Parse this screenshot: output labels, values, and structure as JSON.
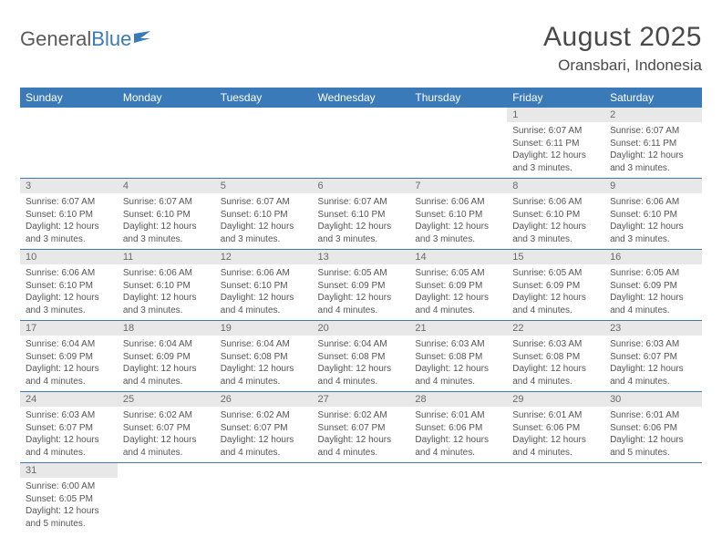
{
  "logo": {
    "text1": "General",
    "text2": "Blue"
  },
  "title": "August 2025",
  "location": "Oransbari, Indonesia",
  "colors": {
    "header_bg": "#3a7ab8",
    "daynum_bg": "#e8e8e8",
    "text": "#555555",
    "border": "#3a7ab8"
  },
  "day_headers": [
    "Sunday",
    "Monday",
    "Tuesday",
    "Wednesday",
    "Thursday",
    "Friday",
    "Saturday"
  ],
  "weeks": [
    [
      null,
      null,
      null,
      null,
      null,
      {
        "n": "1",
        "sr": "6:07 AM",
        "ss": "6:11 PM",
        "dl": "12 hours and 3 minutes."
      },
      {
        "n": "2",
        "sr": "6:07 AM",
        "ss": "6:11 PM",
        "dl": "12 hours and 3 minutes."
      }
    ],
    [
      {
        "n": "3",
        "sr": "6:07 AM",
        "ss": "6:10 PM",
        "dl": "12 hours and 3 minutes."
      },
      {
        "n": "4",
        "sr": "6:07 AM",
        "ss": "6:10 PM",
        "dl": "12 hours and 3 minutes."
      },
      {
        "n": "5",
        "sr": "6:07 AM",
        "ss": "6:10 PM",
        "dl": "12 hours and 3 minutes."
      },
      {
        "n": "6",
        "sr": "6:07 AM",
        "ss": "6:10 PM",
        "dl": "12 hours and 3 minutes."
      },
      {
        "n": "7",
        "sr": "6:06 AM",
        "ss": "6:10 PM",
        "dl": "12 hours and 3 minutes."
      },
      {
        "n": "8",
        "sr": "6:06 AM",
        "ss": "6:10 PM",
        "dl": "12 hours and 3 minutes."
      },
      {
        "n": "9",
        "sr": "6:06 AM",
        "ss": "6:10 PM",
        "dl": "12 hours and 3 minutes."
      }
    ],
    [
      {
        "n": "10",
        "sr": "6:06 AM",
        "ss": "6:10 PM",
        "dl": "12 hours and 3 minutes."
      },
      {
        "n": "11",
        "sr": "6:06 AM",
        "ss": "6:10 PM",
        "dl": "12 hours and 3 minutes."
      },
      {
        "n": "12",
        "sr": "6:06 AM",
        "ss": "6:10 PM",
        "dl": "12 hours and 4 minutes."
      },
      {
        "n": "13",
        "sr": "6:05 AM",
        "ss": "6:09 PM",
        "dl": "12 hours and 4 minutes."
      },
      {
        "n": "14",
        "sr": "6:05 AM",
        "ss": "6:09 PM",
        "dl": "12 hours and 4 minutes."
      },
      {
        "n": "15",
        "sr": "6:05 AM",
        "ss": "6:09 PM",
        "dl": "12 hours and 4 minutes."
      },
      {
        "n": "16",
        "sr": "6:05 AM",
        "ss": "6:09 PM",
        "dl": "12 hours and 4 minutes."
      }
    ],
    [
      {
        "n": "17",
        "sr": "6:04 AM",
        "ss": "6:09 PM",
        "dl": "12 hours and 4 minutes."
      },
      {
        "n": "18",
        "sr": "6:04 AM",
        "ss": "6:09 PM",
        "dl": "12 hours and 4 minutes."
      },
      {
        "n": "19",
        "sr": "6:04 AM",
        "ss": "6:08 PM",
        "dl": "12 hours and 4 minutes."
      },
      {
        "n": "20",
        "sr": "6:04 AM",
        "ss": "6:08 PM",
        "dl": "12 hours and 4 minutes."
      },
      {
        "n": "21",
        "sr": "6:03 AM",
        "ss": "6:08 PM",
        "dl": "12 hours and 4 minutes."
      },
      {
        "n": "22",
        "sr": "6:03 AM",
        "ss": "6:08 PM",
        "dl": "12 hours and 4 minutes."
      },
      {
        "n": "23",
        "sr": "6:03 AM",
        "ss": "6:07 PM",
        "dl": "12 hours and 4 minutes."
      }
    ],
    [
      {
        "n": "24",
        "sr": "6:03 AM",
        "ss": "6:07 PM",
        "dl": "12 hours and 4 minutes."
      },
      {
        "n": "25",
        "sr": "6:02 AM",
        "ss": "6:07 PM",
        "dl": "12 hours and 4 minutes."
      },
      {
        "n": "26",
        "sr": "6:02 AM",
        "ss": "6:07 PM",
        "dl": "12 hours and 4 minutes."
      },
      {
        "n": "27",
        "sr": "6:02 AM",
        "ss": "6:07 PM",
        "dl": "12 hours and 4 minutes."
      },
      {
        "n": "28",
        "sr": "6:01 AM",
        "ss": "6:06 PM",
        "dl": "12 hours and 4 minutes."
      },
      {
        "n": "29",
        "sr": "6:01 AM",
        "ss": "6:06 PM",
        "dl": "12 hours and 4 minutes."
      },
      {
        "n": "30",
        "sr": "6:01 AM",
        "ss": "6:06 PM",
        "dl": "12 hours and 5 minutes."
      }
    ],
    [
      {
        "n": "31",
        "sr": "6:00 AM",
        "ss": "6:05 PM",
        "dl": "12 hours and 5 minutes."
      },
      null,
      null,
      null,
      null,
      null,
      null
    ]
  ],
  "labels": {
    "sunrise": "Sunrise: ",
    "sunset": "Sunset: ",
    "daylight": "Daylight: "
  }
}
